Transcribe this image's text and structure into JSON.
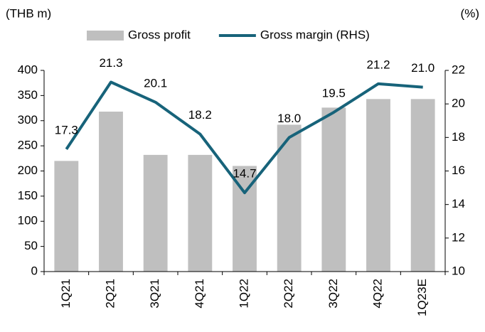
{
  "chart_data": {
    "type": "bar",
    "y_label": "(THB m)",
    "y2_label": "(%)",
    "categories": [
      "1Q21",
      "2Q21",
      "3Q21",
      "4Q21",
      "1Q22",
      "2Q22",
      "3Q22",
      "4Q22",
      "1Q23E"
    ],
    "series": [
      {
        "name": "Gross profit",
        "type": "bar",
        "color": "#bfbfbf",
        "values": [
          220,
          318,
          232,
          232,
          210,
          292,
          326,
          343,
          343
        ]
      },
      {
        "name": "Gross margin (RHS)",
        "type": "line",
        "axis": "y2",
        "color": "#17637a",
        "values": [
          17.3,
          21.3,
          20.1,
          18.2,
          14.7,
          18.0,
          19.5,
          21.2,
          21.0
        ],
        "value_labels": [
          "17.3",
          "21.3",
          "20.1",
          "18.2",
          "14.7",
          "18.0",
          "19.5",
          "21.2",
          "21.0"
        ]
      }
    ],
    "ylim": [
      0,
      400
    ],
    "yticks": [
      0,
      50,
      100,
      150,
      200,
      250,
      300,
      350,
      400
    ],
    "y2lim": [
      10,
      22
    ],
    "y2ticks": [
      10,
      12,
      14,
      16,
      18,
      20,
      22
    ],
    "legend": "top"
  }
}
